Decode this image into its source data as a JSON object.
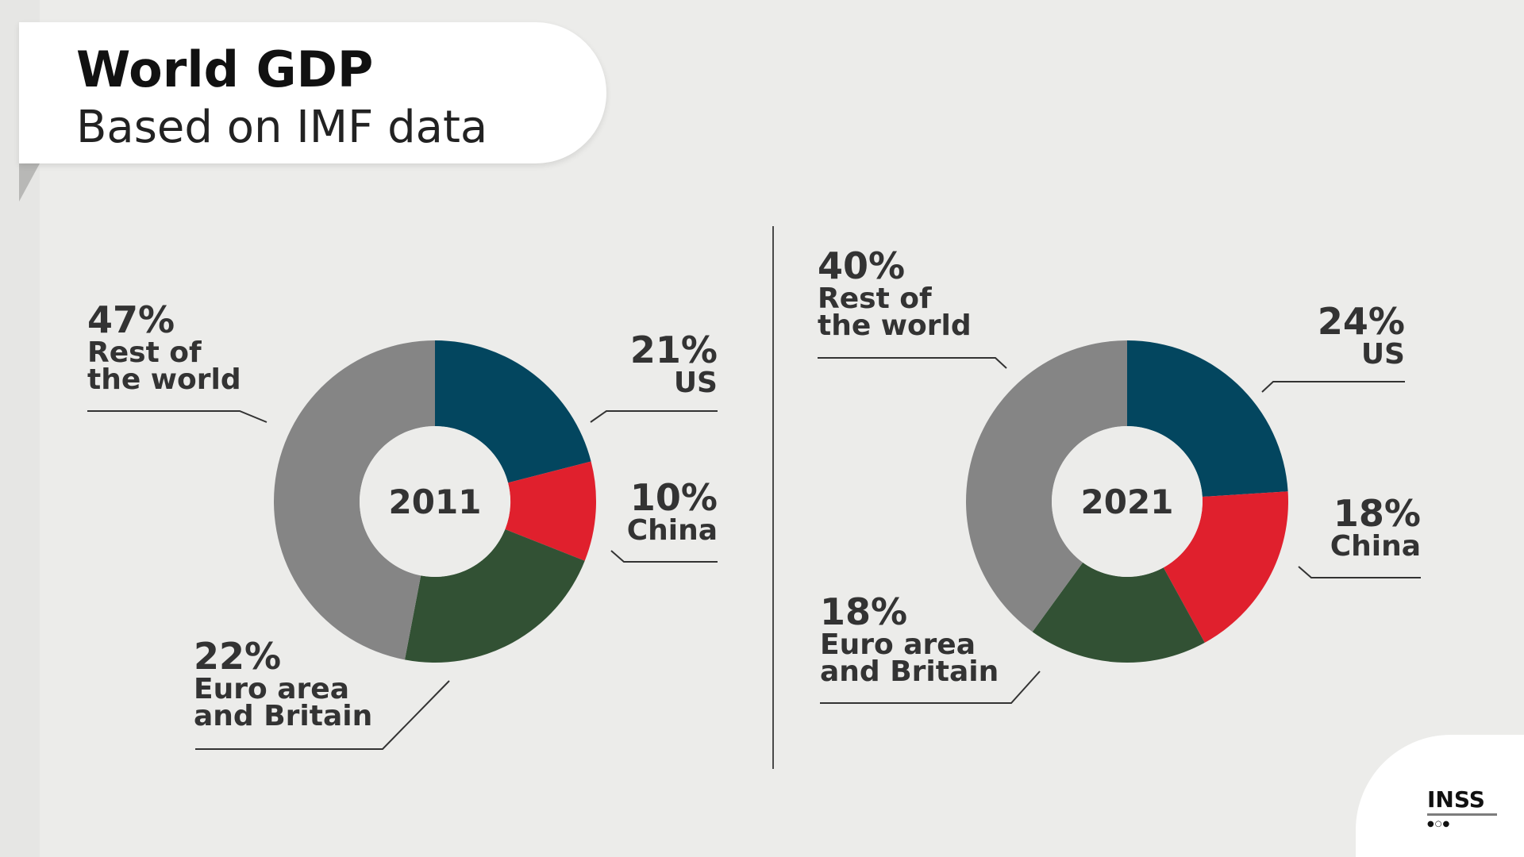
{
  "header": {
    "title": "World GDP",
    "subtitle": "Based on IMF data"
  },
  "colors": {
    "us": "#03465f",
    "china": "#e0202d",
    "euro": "#325134",
    "rest": "#858585",
    "label_text": "#333333",
    "leader_line": "#333333"
  },
  "logo": {
    "text": "INSS",
    "mark": "●○●"
  },
  "chart_data": [
    {
      "type": "pie",
      "center_label": "2011",
      "series": [
        {
          "name": "US",
          "value": 21,
          "value_label": "21%",
          "name_lines": [
            "US"
          ]
        },
        {
          "name": "China",
          "value": 10,
          "value_label": "10%",
          "name_lines": [
            "China"
          ]
        },
        {
          "name": "Euro area and Britain",
          "value": 22,
          "value_label": "22%",
          "name_lines": [
            "Euro area",
            "and Britain"
          ]
        },
        {
          "name": "Rest of the world",
          "value": 47,
          "value_label": "47%",
          "name_lines": [
            "Rest of",
            "the world"
          ]
        }
      ]
    },
    {
      "type": "pie",
      "center_label": "2021",
      "series": [
        {
          "name": "US",
          "value": 24,
          "value_label": "24%",
          "name_lines": [
            "US"
          ]
        },
        {
          "name": "China",
          "value": 18,
          "value_label": "18%",
          "name_lines": [
            "China"
          ]
        },
        {
          "name": "Euro area and Britain",
          "value": 18,
          "value_label": "18%",
          "name_lines": [
            "Euro area",
            "and Britain"
          ]
        },
        {
          "name": "Rest of the world",
          "value": 40,
          "value_label": "40%",
          "name_lines": [
            "Rest of",
            "the world"
          ]
        }
      ]
    }
  ]
}
